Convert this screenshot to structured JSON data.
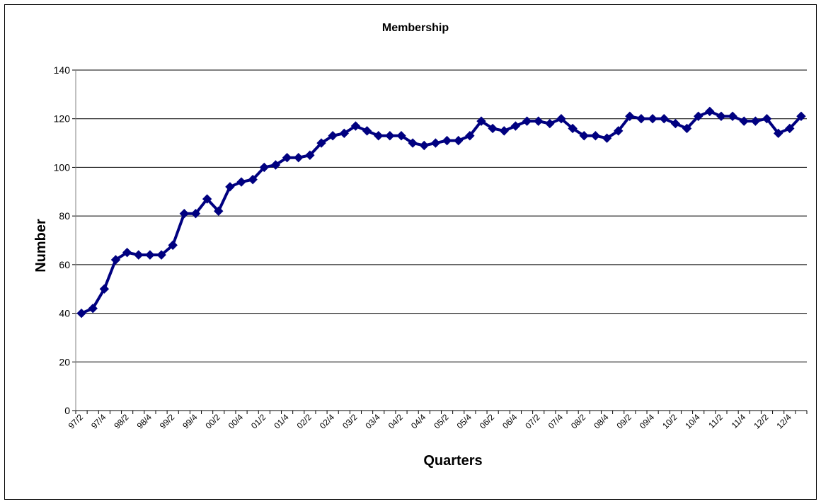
{
  "chart_data": {
    "type": "line",
    "title": "Membership",
    "xlabel": "Quarters",
    "ylabel": "Number",
    "ylim": [
      0,
      140
    ],
    "yticks": [
      0,
      20,
      40,
      60,
      80,
      100,
      120,
      140
    ],
    "grid": true,
    "legend": "none",
    "tick_labels": [
      "97/2",
      "97/4",
      "98/2",
      "98/4",
      "99/2",
      "99/4",
      "00/2",
      "00/4",
      "01/2",
      "01/4",
      "02/2",
      "02/4",
      "03/2",
      "03/4",
      "04/2",
      "04/4",
      "05/2",
      "05/4",
      "06/2",
      "06/4",
      "07/2",
      "07/4",
      "08/2",
      "08/4",
      "09/2",
      "09/4",
      "10/2",
      "10/4",
      "11/2",
      "11/4",
      "12/2",
      "12/4"
    ],
    "values": [
      40,
      42,
      50,
      62,
      65,
      64,
      64,
      64,
      68,
      81,
      81,
      87,
      82,
      92,
      94,
      95,
      100,
      101,
      104,
      104,
      105,
      110,
      113,
      114,
      117,
      115,
      113,
      113,
      113,
      110,
      109,
      110,
      111,
      111,
      113,
      119,
      116,
      115,
      117,
      119,
      119,
      118,
      120,
      116,
      113,
      113,
      112,
      115,
      121,
      120,
      120,
      120,
      118,
      116,
      121,
      123,
      121,
      121,
      119,
      119,
      120,
      114,
      116,
      121
    ],
    "series_color": "#000080"
  }
}
